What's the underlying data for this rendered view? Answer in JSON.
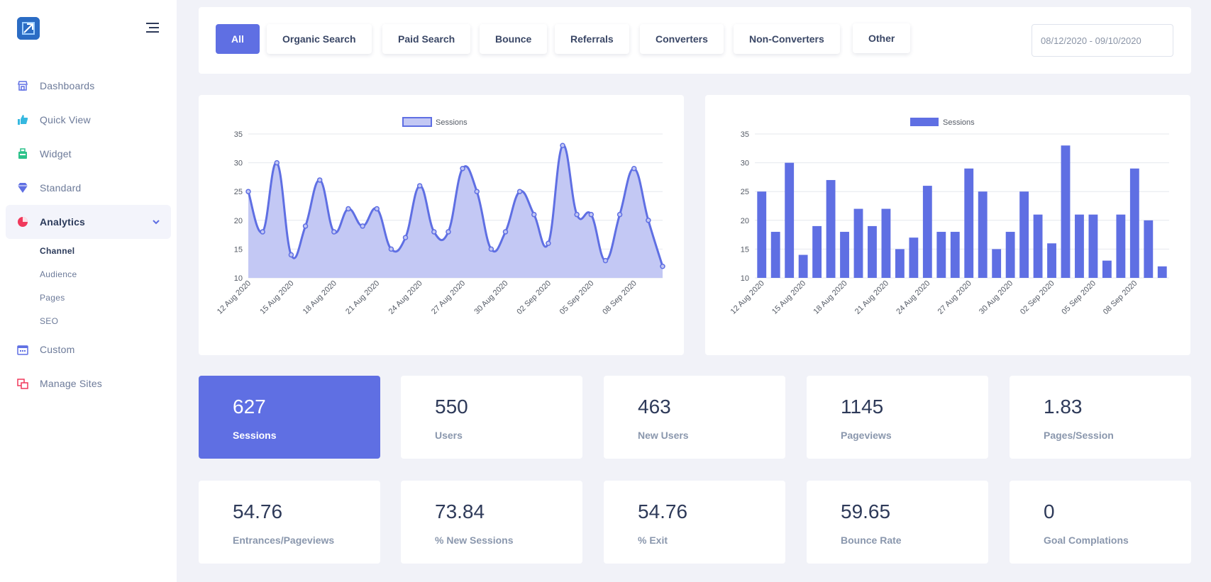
{
  "sidebar": {
    "nav": [
      {
        "label": "Dashboards",
        "icon": "store-icon",
        "color": "#5f6fe3"
      },
      {
        "label": "Quick View",
        "icon": "thumb-up-icon",
        "color": "#35b8e0"
      },
      {
        "label": "Widget",
        "icon": "briefcase-icon",
        "color": "#2cc28a"
      },
      {
        "label": "Standard",
        "icon": "diamond-icon",
        "color": "#5f6fe3"
      },
      {
        "label": "Analytics",
        "icon": "pie-chart-icon",
        "color": "#f0395c",
        "expanded": true
      }
    ],
    "analytics_sub": [
      "Channel",
      "Audience",
      "Pages",
      "SEO"
    ],
    "nav_bottom": [
      {
        "label": "Custom",
        "icon": "calendar-icon",
        "color": "#5f6fe3"
      },
      {
        "label": "Manage Sites",
        "icon": "sites-icon",
        "color": "#f0395c"
      }
    ]
  },
  "filters": {
    "buttons": [
      "All",
      "Organic Search",
      "Paid Search",
      "Bounce",
      "Referrals",
      "Converters",
      "Non-Converters",
      "Other"
    ],
    "active": "All",
    "date_range": "08/12/2020 - 09/10/2020"
  },
  "chart_data": [
    {
      "type": "area",
      "title": "",
      "legend": "Sessions",
      "legend_position": "top",
      "x": [
        "12 Aug 2020",
        "13 Aug 2020",
        "14 Aug 2020",
        "15 Aug 2020",
        "16 Aug 2020",
        "17 Aug 2020",
        "18 Aug 2020",
        "19 Aug 2020",
        "20 Aug 2020",
        "21 Aug 2020",
        "22 Aug 2020",
        "23 Aug 2020",
        "24 Aug 2020",
        "25 Aug 2020",
        "26 Aug 2020",
        "27 Aug 2020",
        "28 Aug 2020",
        "29 Aug 2020",
        "30 Aug 2020",
        "31 Aug 2020",
        "01 Sep 2020",
        "02 Sep 2020",
        "03 Sep 2020",
        "04 Sep 2020",
        "05 Sep 2020",
        "06 Sep 2020",
        "07 Sep 2020",
        "08 Sep 2020",
        "09 Sep 2020",
        "10 Sep 2020"
      ],
      "xticks": [
        "12 Aug 2020",
        "15 Aug 2020",
        "18 Aug 2020",
        "21 Aug 2020",
        "24 Aug 2020",
        "27 Aug 2020",
        "30 Aug 2020",
        "02 Sep 2020",
        "05 Sep 2020",
        "08 Sep 2020"
      ],
      "values": [
        25,
        18,
        30,
        14,
        19,
        27,
        18,
        22,
        19,
        22,
        15,
        17,
        26,
        18,
        18,
        29,
        25,
        15,
        18,
        25,
        21,
        16,
        33,
        21,
        21,
        13,
        21,
        29,
        20,
        12
      ],
      "ylim": [
        10,
        35
      ],
      "yticks": [
        10,
        15,
        20,
        25,
        30,
        35
      ]
    },
    {
      "type": "bar",
      "title": "",
      "legend": "Sessions",
      "legend_position": "top",
      "x": [
        "12 Aug 2020",
        "13 Aug 2020",
        "14 Aug 2020",
        "15 Aug 2020",
        "16 Aug 2020",
        "17 Aug 2020",
        "18 Aug 2020",
        "19 Aug 2020",
        "20 Aug 2020",
        "21 Aug 2020",
        "22 Aug 2020",
        "23 Aug 2020",
        "24 Aug 2020",
        "25 Aug 2020",
        "26 Aug 2020",
        "27 Aug 2020",
        "28 Aug 2020",
        "29 Aug 2020",
        "30 Aug 2020",
        "31 Aug 2020",
        "01 Sep 2020",
        "02 Sep 2020",
        "03 Sep 2020",
        "04 Sep 2020",
        "05 Sep 2020",
        "06 Sep 2020",
        "07 Sep 2020",
        "08 Sep 2020",
        "09 Sep 2020",
        "10 Sep 2020"
      ],
      "xticks": [
        "12 Aug 2020",
        "15 Aug 2020",
        "18 Aug 2020",
        "21 Aug 2020",
        "24 Aug 2020",
        "27 Aug 2020",
        "30 Aug 2020",
        "02 Sep 2020",
        "05 Sep 2020",
        "08 Sep 2020"
      ],
      "values": [
        25,
        18,
        30,
        14,
        19,
        27,
        18,
        22,
        19,
        22,
        15,
        17,
        26,
        18,
        18,
        29,
        25,
        15,
        18,
        25,
        21,
        16,
        33,
        21,
        21,
        13,
        21,
        29,
        20,
        12
      ],
      "ylim": [
        10,
        35
      ],
      "yticks": [
        10,
        15,
        20,
        25,
        30,
        35
      ]
    }
  ],
  "kpis_row1": [
    {
      "value": "627",
      "label": "Sessions"
    },
    {
      "value": "550",
      "label": "Users"
    },
    {
      "value": "463",
      "label": "New Users"
    },
    {
      "value": "1145",
      "label": "Pageviews"
    },
    {
      "value": "1.83",
      "label": "Pages/Session"
    }
  ],
  "kpis_row2": [
    {
      "value": "54.76",
      "label": "Entrances/Pageviews"
    },
    {
      "value": "73.84",
      "label": "% New Sessions"
    },
    {
      "value": "54.76",
      "label": "% Exit"
    },
    {
      "value": "59.65",
      "label": "Bounce Rate"
    },
    {
      "value": "0",
      "label": "Goal Complations"
    }
  ],
  "colors": {
    "accent": "#5f6fe3",
    "area_fill": "#c3c8f4",
    "text_dark": "#2e3a59",
    "text_muted": "#8a97ad"
  }
}
